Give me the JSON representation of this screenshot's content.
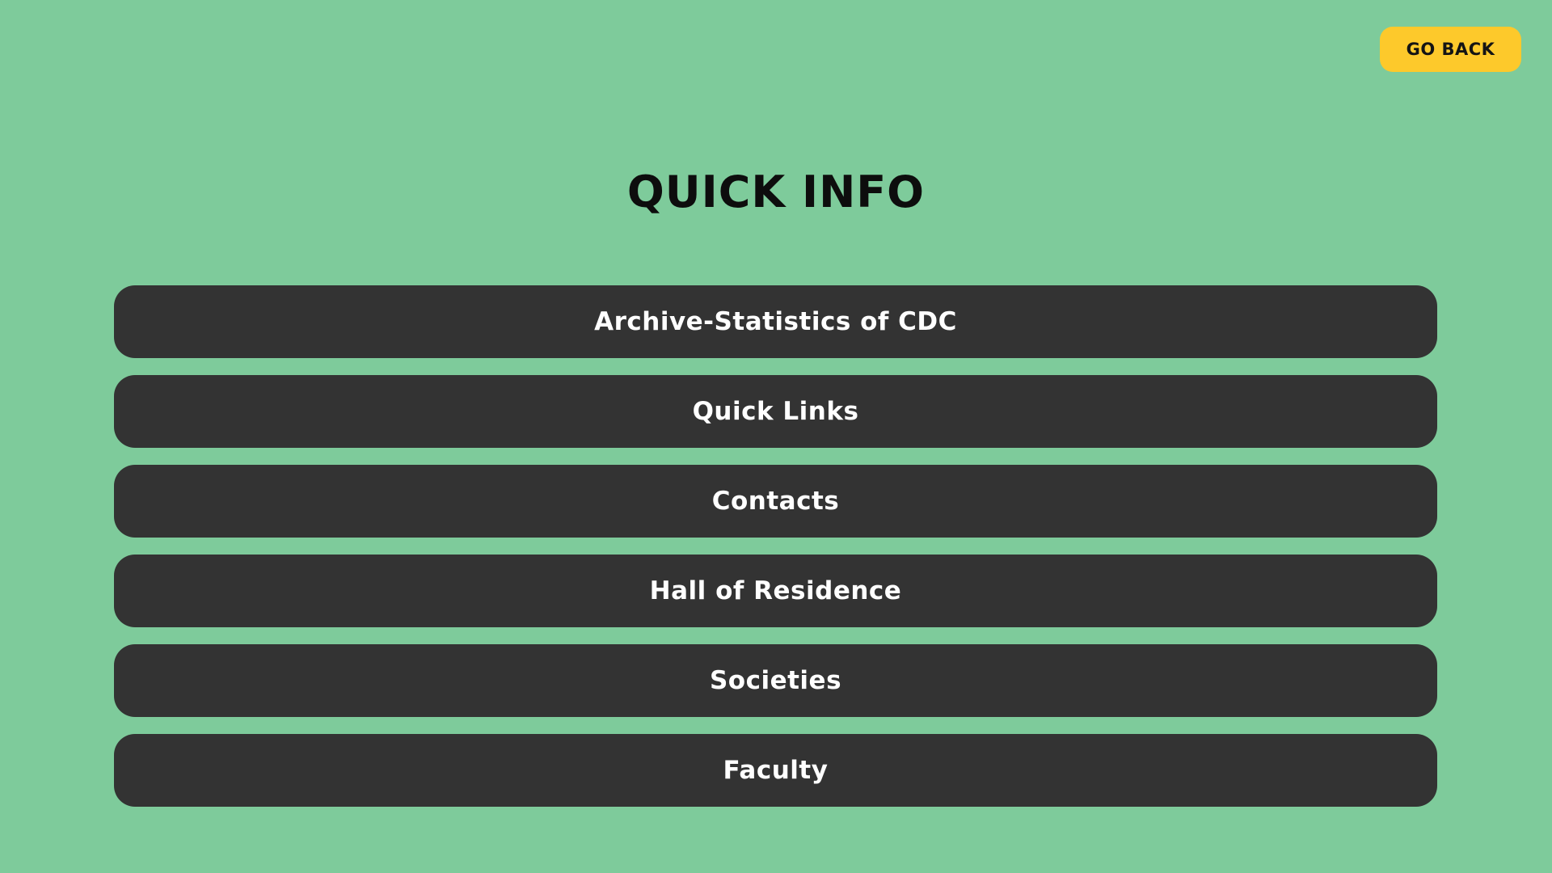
{
  "header": {
    "go_back_label": "GO BACK"
  },
  "main": {
    "title": "QUICK INFO",
    "items": [
      {
        "label": "Archive-Statistics of CDC"
      },
      {
        "label": "Quick Links"
      },
      {
        "label": "Contacts"
      },
      {
        "label": "Hall of Residence"
      },
      {
        "label": "Societies"
      },
      {
        "label": "Faculty"
      }
    ]
  },
  "colors": {
    "background": "#7ecb9b",
    "button_accent": "#fdc92b",
    "menu_item_bg": "#333333",
    "menu_item_text": "#ffffff",
    "title_text": "#0d0d0d"
  }
}
